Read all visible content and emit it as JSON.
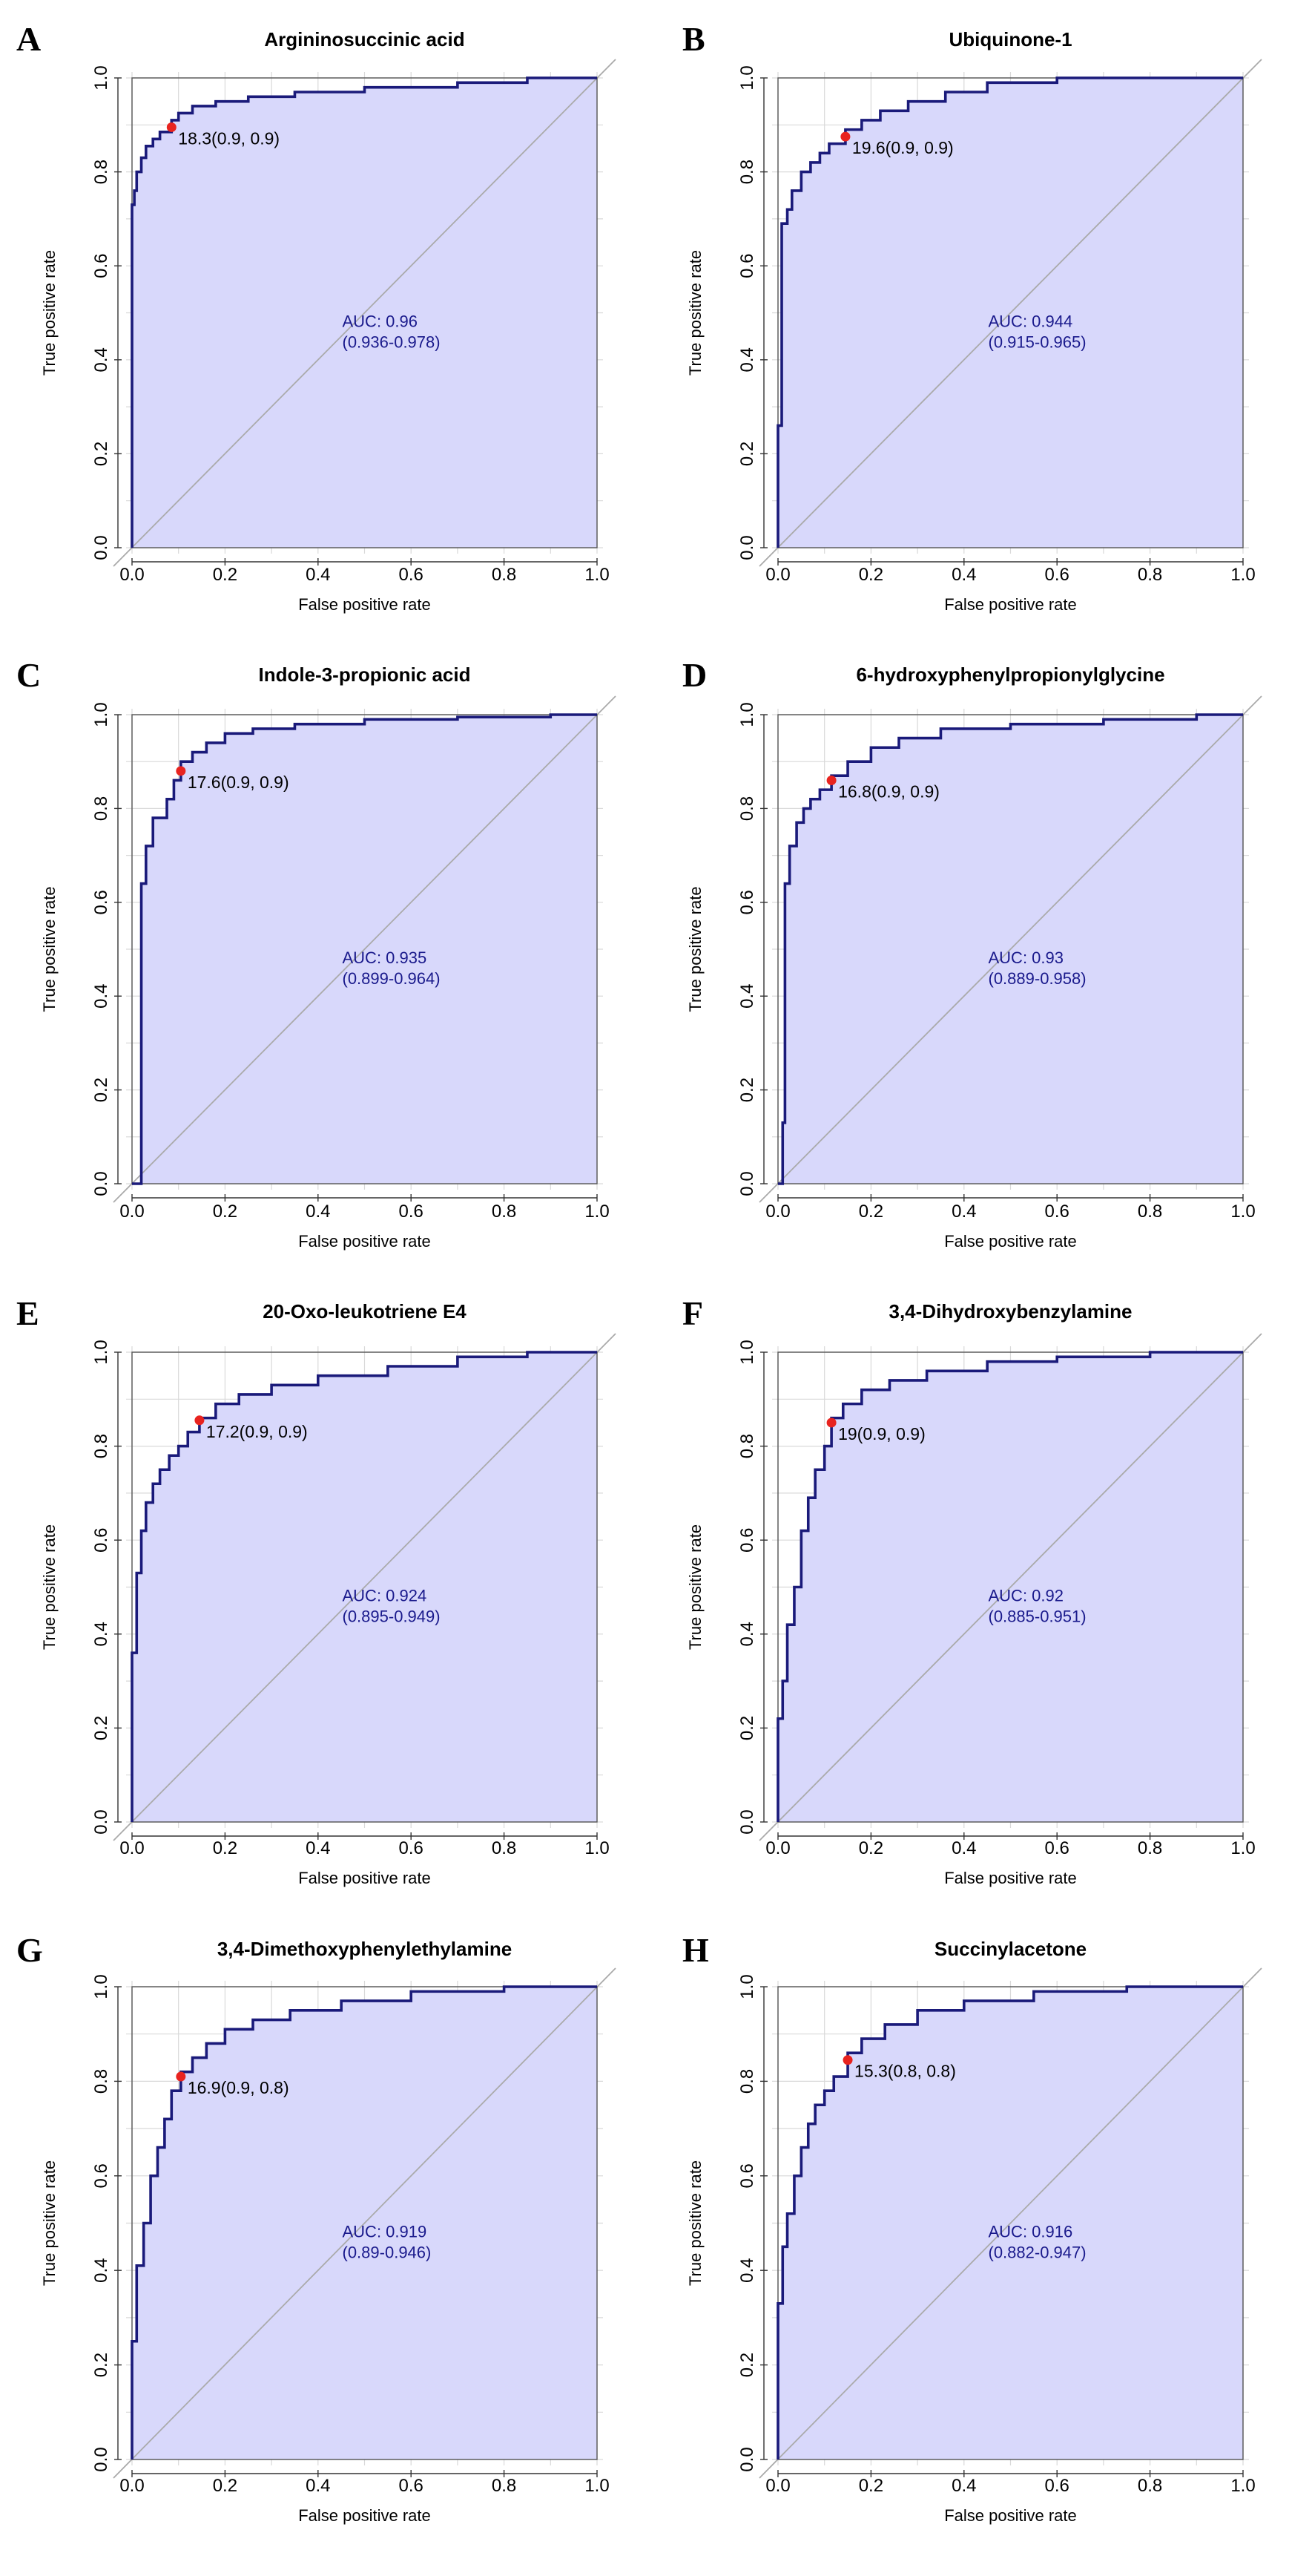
{
  "chart_data": [
    {
      "type": "line",
      "panel_label": "A",
      "title": "Argininosuccinic acid",
      "xlabel": "False positive rate",
      "ylabel": "True positive rate",
      "xlim": [
        0,
        1
      ],
      "ylim": [
        0,
        1
      ],
      "x_ticks": [
        "0.0",
        "0.2",
        "0.4",
        "0.6",
        "0.8",
        "1.0"
      ],
      "y_ticks": [
        "0.0",
        "0.2",
        "0.4",
        "0.6",
        "0.8",
        "1.0"
      ],
      "grid": true,
      "auc_label": "AUC: 0.96",
      "auc_ci": "(0.936-0.978)",
      "cutoff_label": "18.3(0.9, 0.9)",
      "cutoff_point": [
        0.085,
        0.895
      ],
      "roc_x": [
        0.0,
        0.0,
        0.005,
        0.005,
        0.01,
        0.01,
        0.02,
        0.02,
        0.03,
        0.03,
        0.045,
        0.045,
        0.06,
        0.06,
        0.085,
        0.085,
        0.1,
        0.1,
        0.13,
        0.13,
        0.18,
        0.18,
        0.25,
        0.25,
        0.35,
        0.35,
        0.5,
        0.5,
        0.7,
        0.7,
        0.85,
        0.85,
        1.0
      ],
      "roc_y": [
        0.0,
        0.73,
        0.73,
        0.76,
        0.76,
        0.8,
        0.8,
        0.83,
        0.83,
        0.855,
        0.855,
        0.87,
        0.87,
        0.885,
        0.885,
        0.91,
        0.91,
        0.925,
        0.925,
        0.94,
        0.94,
        0.95,
        0.95,
        0.96,
        0.96,
        0.97,
        0.97,
        0.98,
        0.98,
        0.99,
        0.99,
        1.0,
        1.0
      ]
    },
    {
      "type": "line",
      "panel_label": "B",
      "title": "Ubiquinone-1",
      "xlabel": "False positive rate",
      "ylabel": "True positive rate",
      "xlim": [
        0,
        1
      ],
      "ylim": [
        0,
        1
      ],
      "x_ticks": [
        "0.0",
        "0.2",
        "0.4",
        "0.6",
        "0.8",
        "1.0"
      ],
      "y_ticks": [
        "0.0",
        "0.2",
        "0.4",
        "0.6",
        "0.8",
        "1.0"
      ],
      "grid": true,
      "auc_label": "AUC: 0.944",
      "auc_ci": "(0.915-0.965)",
      "cutoff_label": "19.6(0.9, 0.9)",
      "cutoff_point": [
        0.145,
        0.875
      ],
      "roc_x": [
        0.0,
        0.0,
        0.008,
        0.008,
        0.02,
        0.02,
        0.03,
        0.03,
        0.05,
        0.05,
        0.07,
        0.07,
        0.09,
        0.09,
        0.11,
        0.11,
        0.145,
        0.145,
        0.18,
        0.18,
        0.22,
        0.22,
        0.28,
        0.28,
        0.36,
        0.36,
        0.45,
        0.45,
        0.6,
        0.6,
        1.0
      ],
      "roc_y": [
        0.0,
        0.26,
        0.26,
        0.69,
        0.69,
        0.72,
        0.72,
        0.76,
        0.76,
        0.8,
        0.8,
        0.82,
        0.82,
        0.84,
        0.84,
        0.86,
        0.86,
        0.89,
        0.89,
        0.91,
        0.91,
        0.93,
        0.93,
        0.95,
        0.95,
        0.97,
        0.97,
        0.99,
        0.99,
        1.0,
        1.0
      ]
    },
    {
      "type": "line",
      "panel_label": "C",
      "title": "Indole-3-propionic acid",
      "xlabel": "False positive rate",
      "ylabel": "True positive rate",
      "xlim": [
        0,
        1
      ],
      "ylim": [
        0,
        1
      ],
      "x_ticks": [
        "0.0",
        "0.2",
        "0.4",
        "0.6",
        "0.8",
        "1.0"
      ],
      "y_ticks": [
        "0.0",
        "0.2",
        "0.4",
        "0.6",
        "0.8",
        "1.0"
      ],
      "grid": true,
      "auc_label": "AUC: 0.935",
      "auc_ci": "(0.899-0.964)",
      "cutoff_label": "17.6(0.9, 0.9)",
      "cutoff_point": [
        0.105,
        0.88
      ],
      "roc_x": [
        0.0,
        0.02,
        0.02,
        0.03,
        0.03,
        0.045,
        0.045,
        0.075,
        0.075,
        0.09,
        0.09,
        0.105,
        0.105,
        0.13,
        0.13,
        0.16,
        0.16,
        0.2,
        0.2,
        0.26,
        0.26,
        0.35,
        0.35,
        0.5,
        0.5,
        0.7,
        0.7,
        0.9,
        0.9,
        1.0
      ],
      "roc_y": [
        0.0,
        0.0,
        0.64,
        0.64,
        0.72,
        0.72,
        0.78,
        0.78,
        0.82,
        0.82,
        0.86,
        0.86,
        0.9,
        0.9,
        0.92,
        0.92,
        0.94,
        0.94,
        0.96,
        0.96,
        0.97,
        0.97,
        0.98,
        0.98,
        0.99,
        0.99,
        0.995,
        0.995,
        1.0,
        1.0
      ]
    },
    {
      "type": "line",
      "panel_label": "D",
      "title": "6-hydroxyphenylpropionylglycine",
      "xlabel": "False positive rate",
      "ylabel": "True positive rate",
      "xlim": [
        0,
        1
      ],
      "ylim": [
        0,
        1
      ],
      "x_ticks": [
        "0.0",
        "0.2",
        "0.4",
        "0.6",
        "0.8",
        "1.0"
      ],
      "y_ticks": [
        "0.0",
        "0.2",
        "0.4",
        "0.6",
        "0.8",
        "1.0"
      ],
      "grid": true,
      "auc_label": "AUC: 0.93",
      "auc_ci": "(0.889-0.958)",
      "cutoff_label": "16.8(0.9, 0.9)",
      "cutoff_point": [
        0.115,
        0.86
      ],
      "roc_x": [
        0.0,
        0.01,
        0.01,
        0.015,
        0.015,
        0.025,
        0.025,
        0.04,
        0.04,
        0.055,
        0.055,
        0.07,
        0.07,
        0.09,
        0.09,
        0.115,
        0.115,
        0.15,
        0.15,
        0.2,
        0.2,
        0.26,
        0.26,
        0.35,
        0.35,
        0.5,
        0.5,
        0.7,
        0.7,
        0.9,
        0.9,
        1.0
      ],
      "roc_y": [
        0.0,
        0.0,
        0.13,
        0.13,
        0.64,
        0.64,
        0.72,
        0.72,
        0.77,
        0.77,
        0.8,
        0.8,
        0.82,
        0.82,
        0.84,
        0.84,
        0.87,
        0.87,
        0.9,
        0.9,
        0.93,
        0.93,
        0.95,
        0.95,
        0.97,
        0.97,
        0.98,
        0.98,
        0.99,
        0.99,
        1.0,
        1.0
      ]
    },
    {
      "type": "line",
      "panel_label": "E",
      "title": "20-Oxo-leukotriene E4",
      "xlabel": "False positive rate",
      "ylabel": "True positive rate",
      "xlim": [
        0,
        1
      ],
      "ylim": [
        0,
        1
      ],
      "x_ticks": [
        "0.0",
        "0.2",
        "0.4",
        "0.6",
        "0.8",
        "1.0"
      ],
      "y_ticks": [
        "0.0",
        "0.2",
        "0.4",
        "0.6",
        "0.8",
        "1.0"
      ],
      "grid": true,
      "auc_label": "AUC: 0.924",
      "auc_ci": "(0.895-0.949)",
      "cutoff_label": "17.2(0.9, 0.9)",
      "cutoff_point": [
        0.145,
        0.855
      ],
      "roc_x": [
        0.0,
        0.0,
        0.01,
        0.01,
        0.02,
        0.02,
        0.03,
        0.03,
        0.045,
        0.045,
        0.06,
        0.06,
        0.08,
        0.08,
        0.1,
        0.1,
        0.12,
        0.12,
        0.145,
        0.145,
        0.18,
        0.18,
        0.23,
        0.23,
        0.3,
        0.3,
        0.4,
        0.4,
        0.55,
        0.55,
        0.7,
        0.7,
        0.85,
        0.85,
        1.0
      ],
      "roc_y": [
        0.0,
        0.36,
        0.36,
        0.53,
        0.53,
        0.62,
        0.62,
        0.68,
        0.68,
        0.72,
        0.72,
        0.75,
        0.75,
        0.78,
        0.78,
        0.8,
        0.8,
        0.83,
        0.83,
        0.86,
        0.86,
        0.89,
        0.89,
        0.91,
        0.91,
        0.93,
        0.93,
        0.95,
        0.95,
        0.97,
        0.97,
        0.99,
        0.99,
        1.0,
        1.0
      ]
    },
    {
      "type": "line",
      "panel_label": "F",
      "title": "3,4-Dihydroxybenzylamine",
      "xlabel": "False positive rate",
      "ylabel": "True positive rate",
      "xlim": [
        0,
        1
      ],
      "ylim": [
        0,
        1
      ],
      "x_ticks": [
        "0.0",
        "0.2",
        "0.4",
        "0.6",
        "0.8",
        "1.0"
      ],
      "y_ticks": [
        "0.0",
        "0.2",
        "0.4",
        "0.6",
        "0.8",
        "1.0"
      ],
      "grid": true,
      "auc_label": "AUC: 0.92",
      "auc_ci": "(0.885-0.951)",
      "cutoff_label": "19(0.9, 0.9)",
      "cutoff_point": [
        0.115,
        0.85
      ],
      "roc_x": [
        0.0,
        0.0,
        0.01,
        0.01,
        0.02,
        0.02,
        0.035,
        0.035,
        0.05,
        0.05,
        0.065,
        0.065,
        0.08,
        0.08,
        0.1,
        0.1,
        0.115,
        0.115,
        0.14,
        0.14,
        0.18,
        0.18,
        0.24,
        0.24,
        0.32,
        0.32,
        0.45,
        0.45,
        0.6,
        0.6,
        0.8,
        0.8,
        1.0
      ],
      "roc_y": [
        0.0,
        0.22,
        0.22,
        0.3,
        0.3,
        0.42,
        0.42,
        0.5,
        0.5,
        0.62,
        0.62,
        0.69,
        0.69,
        0.75,
        0.75,
        0.8,
        0.8,
        0.86,
        0.86,
        0.89,
        0.89,
        0.92,
        0.92,
        0.94,
        0.94,
        0.96,
        0.96,
        0.98,
        0.98,
        0.99,
        0.99,
        1.0,
        1.0
      ]
    },
    {
      "type": "line",
      "panel_label": "G",
      "title": "3,4-Dimethoxyphenylethylamine",
      "xlabel": "False positive rate",
      "ylabel": "True positive rate",
      "xlim": [
        0,
        1
      ],
      "ylim": [
        0,
        1
      ],
      "x_ticks": [
        "0.0",
        "0.2",
        "0.4",
        "0.6",
        "0.8",
        "1.0"
      ],
      "y_ticks": [
        "0.0",
        "0.2",
        "0.4",
        "0.6",
        "0.8",
        "1.0"
      ],
      "grid": true,
      "auc_label": "AUC: 0.919",
      "auc_ci": "(0.89-0.946)",
      "cutoff_label": "16.9(0.9, 0.8)",
      "cutoff_point": [
        0.105,
        0.81
      ],
      "roc_x": [
        0.0,
        0.0,
        0.01,
        0.01,
        0.025,
        0.025,
        0.04,
        0.04,
        0.055,
        0.055,
        0.07,
        0.07,
        0.085,
        0.085,
        0.105,
        0.105,
        0.13,
        0.13,
        0.16,
        0.16,
        0.2,
        0.2,
        0.26,
        0.26,
        0.34,
        0.34,
        0.45,
        0.45,
        0.6,
        0.6,
        0.8,
        0.8,
        1.0
      ],
      "roc_y": [
        0.0,
        0.25,
        0.25,
        0.41,
        0.41,
        0.5,
        0.5,
        0.6,
        0.6,
        0.66,
        0.66,
        0.72,
        0.72,
        0.78,
        0.78,
        0.82,
        0.82,
        0.85,
        0.85,
        0.88,
        0.88,
        0.91,
        0.91,
        0.93,
        0.93,
        0.95,
        0.95,
        0.97,
        0.97,
        0.99,
        0.99,
        1.0,
        1.0
      ]
    },
    {
      "type": "line",
      "panel_label": "H",
      "title": "Succinylacetone",
      "xlabel": "False positive rate",
      "ylabel": "True positive rate",
      "xlim": [
        0,
        1
      ],
      "ylim": [
        0,
        1
      ],
      "x_ticks": [
        "0.0",
        "0.2",
        "0.4",
        "0.6",
        "0.8",
        "1.0"
      ],
      "y_ticks": [
        "0.0",
        "0.2",
        "0.4",
        "0.6",
        "0.8",
        "1.0"
      ],
      "grid": true,
      "auc_label": "AUC: 0.916",
      "auc_ci": "(0.882-0.947)",
      "cutoff_label": "15.3(0.8, 0.8)",
      "cutoff_point": [
        0.15,
        0.845
      ],
      "roc_x": [
        0.0,
        0.0,
        0.01,
        0.01,
        0.02,
        0.02,
        0.035,
        0.035,
        0.05,
        0.05,
        0.065,
        0.065,
        0.08,
        0.08,
        0.1,
        0.1,
        0.12,
        0.12,
        0.15,
        0.15,
        0.18,
        0.18,
        0.23,
        0.23,
        0.3,
        0.3,
        0.4,
        0.4,
        0.55,
        0.55,
        0.75,
        0.75,
        1.0
      ],
      "roc_y": [
        0.0,
        0.33,
        0.33,
        0.45,
        0.45,
        0.52,
        0.52,
        0.6,
        0.6,
        0.66,
        0.66,
        0.71,
        0.71,
        0.75,
        0.75,
        0.78,
        0.78,
        0.81,
        0.81,
        0.86,
        0.86,
        0.89,
        0.89,
        0.92,
        0.92,
        0.95,
        0.95,
        0.97,
        0.97,
        0.99,
        0.99,
        1.0,
        1.0
      ]
    }
  ],
  "colors": {
    "roc_line": "#1a1a7a",
    "fill": "#d8d8fb",
    "diagonal": "#aaaaaa",
    "grid": "#d9d9d9",
    "cutoff": "#e8231f",
    "auc_text": "#1a1a8c"
  }
}
